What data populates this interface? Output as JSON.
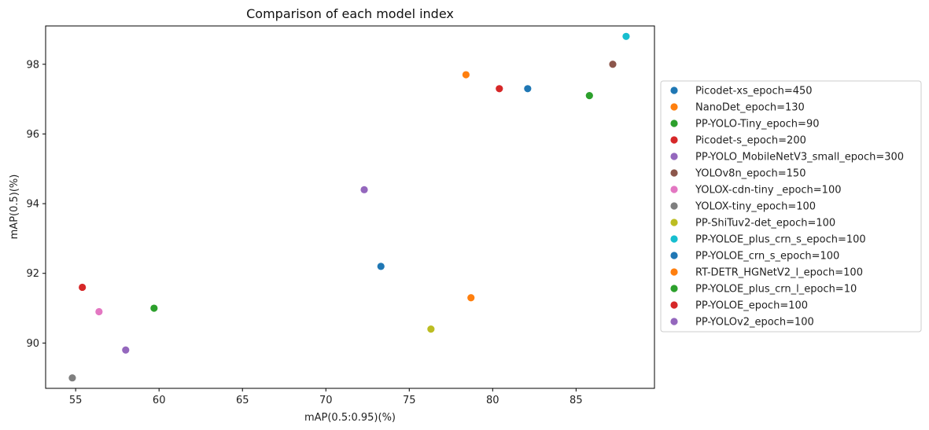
{
  "chart_data": {
    "type": "scatter",
    "title": "Comparison of each model index",
    "xlabel": "mAP(0.5:0.95)(%)",
    "ylabel": "mAP(0.5)(%)",
    "xlim": [
      53.2,
      89.7
    ],
    "ylim": [
      88.7,
      99.1
    ],
    "xticks": [
      55,
      60,
      65,
      70,
      75,
      80,
      85
    ],
    "yticks": [
      90,
      92,
      94,
      96,
      98
    ],
    "grid": false,
    "legend_position": "right",
    "series": [
      {
        "name": "Picodet-xs_epoch=450",
        "color": "#1f77b4",
        "x": [
          73.3
        ],
        "y": [
          92.2
        ]
      },
      {
        "name": "NanoDet_epoch=130",
        "color": "#ff7f0e",
        "x": [
          78.7
        ],
        "y": [
          91.3
        ]
      },
      {
        "name": "PP-YOLO-Tiny_epoch=90",
        "color": "#2ca02c",
        "x": [
          59.7
        ],
        "y": [
          91.0
        ]
      },
      {
        "name": "Picodet-s_epoch=200",
        "color": "#d62728",
        "x": [
          55.4
        ],
        "y": [
          91.6
        ]
      },
      {
        "name": "PP-YOLO_MobileNetV3_small_epoch=300",
        "color": "#9467bd",
        "x": [
          58.0
        ],
        "y": [
          89.8
        ]
      },
      {
        "name": "YOLOv8n_epoch=150",
        "color": "#8c564b",
        "x": [
          87.2
        ],
        "y": [
          98.0
        ]
      },
      {
        "name": "YOLOX-cdn-tiny _epoch=100",
        "color": "#e377c2",
        "x": [
          56.4
        ],
        "y": [
          90.9
        ]
      },
      {
        "name": "YOLOX-tiny_epoch=100",
        "color": "#7f7f7f",
        "x": [
          54.8
        ],
        "y": [
          89.0
        ]
      },
      {
        "name": "PP-ShiTuv2-det_epoch=100",
        "color": "#bcbd22",
        "x": [
          76.3
        ],
        "y": [
          90.4
        ]
      },
      {
        "name": "PP-YOLOE_plus_crn_s_epoch=100",
        "color": "#17becf",
        "x": [
          88.0
        ],
        "y": [
          98.8
        ]
      },
      {
        "name": "PP-YOLOE_crn_s_epoch=100",
        "color": "#1f77b4",
        "x": [
          82.1
        ],
        "y": [
          97.3
        ]
      },
      {
        "name": "RT-DETR_HGNetV2_l_epoch=100",
        "color": "#ff7f0e",
        "x": [
          78.4
        ],
        "y": [
          97.7
        ]
      },
      {
        "name": "PP-YOLOE_plus_crn_l_epoch=10",
        "color": "#2ca02c",
        "x": [
          85.8
        ],
        "y": [
          97.1
        ]
      },
      {
        "name": "PP-YOLOE_epoch=100",
        "color": "#d62728",
        "x": [
          80.4
        ],
        "y": [
          97.3
        ]
      },
      {
        "name": "PP-YOLOv2_epoch=100",
        "color": "#9467bd",
        "x": [
          72.3
        ],
        "y": [
          94.4
        ]
      }
    ]
  }
}
